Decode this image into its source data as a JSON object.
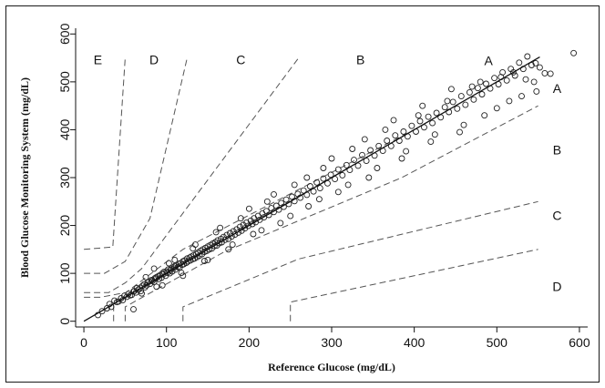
{
  "chart_data": {
    "type": "scatter",
    "title": "",
    "xlabel": "Reference Glucose (mg/dL)",
    "ylabel": "Blood Glucose Monitoring System (mg/dL)",
    "xlim": [
      -10,
      610
    ],
    "ylim": [
      -12,
      612
    ],
    "x_ticks": [
      0,
      100,
      200,
      300,
      400,
      500,
      600
    ],
    "y_ticks": [
      0,
      100,
      200,
      300,
      400,
      500,
      600
    ],
    "grid": false,
    "legend": "none",
    "marker": "open-circle",
    "colors": {
      "points": "#222222",
      "line": "#111111",
      "zone_lines": "#555555"
    },
    "regression_line": {
      "from": [
        0,
        0
      ],
      "to": [
        552,
        552
      ]
    },
    "zone_boundaries": [
      [
        [
          36,
          0
        ],
        [
          36,
          40
        ]
      ],
      [
        [
          0,
          50
        ],
        [
          20,
          50
        ],
        [
          51,
          60
        ],
        [
          120,
          150
        ],
        [
          400,
          400
        ]
      ],
      [
        [
          0,
          60
        ],
        [
          30,
          60
        ],
        [
          50,
          80
        ],
        [
          70,
          110
        ],
        [
          260,
          550
        ]
      ],
      [
        [
          0,
          100
        ],
        [
          25,
          100
        ],
        [
          50,
          125
        ],
        [
          80,
          215
        ],
        [
          125,
          550
        ]
      ],
      [
        [
          0,
          150
        ],
        [
          35,
          155
        ],
        [
          50,
          550
        ]
      ],
      [
        [
          50,
          0
        ],
        [
          50,
          30
        ],
        [
          170,
          145
        ],
        [
          385,
          300
        ],
        [
          550,
          450
        ]
      ],
      [
        [
          120,
          0
        ],
        [
          120,
          30
        ],
        [
          260,
          130
        ],
        [
          550,
          250
        ]
      ],
      [
        [
          250,
          0
        ],
        [
          250,
          40
        ],
        [
          550,
          150
        ]
      ]
    ],
    "zone_labels": [
      {
        "text": "E",
        "x": 17,
        "y": 546
      },
      {
        "text": "D",
        "x": 85,
        "y": 546
      },
      {
        "text": "C",
        "x": 190,
        "y": 546
      },
      {
        "text": "B",
        "x": 335,
        "y": 546
      },
      {
        "text": "A",
        "x": 490,
        "y": 544
      },
      {
        "text": "A",
        "x": 573,
        "y": 486
      },
      {
        "text": "B",
        "x": 573,
        "y": 358
      },
      {
        "text": "C",
        "x": 573,
        "y": 221
      },
      {
        "text": "D",
        "x": 573,
        "y": 73
      }
    ],
    "points": [
      [
        17,
        13
      ],
      [
        22,
        21
      ],
      [
        28,
        27
      ],
      [
        31,
        36
      ],
      [
        33,
        30
      ],
      [
        37,
        43
      ],
      [
        40,
        40
      ],
      [
        42,
        41
      ],
      [
        45,
        48
      ],
      [
        47,
        44
      ],
      [
        49,
        53
      ],
      [
        52,
        51
      ],
      [
        54,
        57
      ],
      [
        56,
        54
      ],
      [
        58,
        55
      ],
      [
        60,
        62
      ],
      [
        61,
        63
      ],
      [
        63,
        60
      ],
      [
        64,
        69
      ],
      [
        66,
        66
      ],
      [
        68,
        70
      ],
      [
        69,
        63
      ],
      [
        71,
        74
      ],
      [
        73,
        77
      ],
      [
        74,
        71
      ],
      [
        76,
        75
      ],
      [
        77,
        81
      ],
      [
        79,
        83
      ],
      [
        80,
        78
      ],
      [
        82,
        86
      ],
      [
        83,
        84
      ],
      [
        85,
        82
      ],
      [
        86,
        90
      ],
      [
        87,
        89
      ],
      [
        88,
        92
      ],
      [
        90,
        94
      ],
      [
        91,
        88
      ],
      [
        92,
        96
      ],
      [
        94,
        91
      ],
      [
        95,
        100
      ],
      [
        96,
        98
      ],
      [
        97,
        103
      ],
      [
        99,
        95
      ],
      [
        100,
        104
      ],
      [
        101,
        101
      ],
      [
        102,
        108
      ],
      [
        104,
        100
      ],
      [
        105,
        107
      ],
      [
        106,
        110
      ],
      [
        107,
        104
      ],
      [
        109,
        112
      ],
      [
        110,
        115
      ],
      [
        111,
        108
      ],
      [
        112,
        117
      ],
      [
        114,
        113
      ],
      [
        115,
        120
      ],
      [
        116,
        112
      ],
      [
        117,
        121
      ],
      [
        119,
        118
      ],
      [
        120,
        125
      ],
      [
        121,
        119
      ],
      [
        122,
        127
      ],
      [
        124,
        122
      ],
      [
        125,
        131
      ],
      [
        126,
        125
      ],
      [
        128,
        133
      ],
      [
        129,
        127
      ],
      [
        130,
        135
      ],
      [
        132,
        130
      ],
      [
        133,
        138
      ],
      [
        134,
        131
      ],
      [
        136,
        140
      ],
      [
        137,
        134
      ],
      [
        138,
        143
      ],
      [
        140,
        137
      ],
      [
        141,
        147
      ],
      [
        143,
        140
      ],
      [
        144,
        150
      ],
      [
        146,
        145
      ],
      [
        147,
        153
      ],
      [
        149,
        147
      ],
      [
        150,
        156
      ],
      [
        152,
        150
      ],
      [
        153,
        159
      ],
      [
        155,
        152
      ],
      [
        156,
        162
      ],
      [
        158,
        157
      ],
      [
        159,
        165
      ],
      [
        161,
        158
      ],
      [
        162,
        169
      ],
      [
        164,
        163
      ],
      [
        166,
        172
      ],
      [
        167,
        165
      ],
      [
        169,
        176
      ],
      [
        171,
        170
      ],
      [
        173,
        180
      ],
      [
        175,
        172
      ],
      [
        177,
        184
      ],
      [
        179,
        177
      ],
      [
        181,
        188
      ],
      [
        183,
        181
      ],
      [
        185,
        192
      ],
      [
        187,
        185
      ],
      [
        189,
        197
      ],
      [
        191,
        189
      ],
      [
        193,
        201
      ],
      [
        195,
        194
      ],
      [
        197,
        206
      ],
      [
        199,
        199
      ],
      [
        202,
        210
      ],
      [
        204,
        203
      ],
      [
        206,
        215
      ],
      [
        208,
        207
      ],
      [
        211,
        220
      ],
      [
        213,
        212
      ],
      [
        216,
        225
      ],
      [
        218,
        217
      ],
      [
        221,
        230
      ],
      [
        224,
        222
      ],
      [
        227,
        236
      ],
      [
        230,
        228
      ],
      [
        233,
        241
      ],
      [
        236,
        233
      ],
      [
        239,
        247
      ],
      [
        242,
        239
      ],
      [
        245,
        254
      ],
      [
        248,
        245
      ],
      [
        252,
        260
      ],
      [
        255,
        251
      ],
      [
        259,
        266
      ],
      [
        262,
        258
      ],
      [
        266,
        273
      ],
      [
        270,
        264
      ],
      [
        274,
        282
      ],
      [
        278,
        271
      ],
      [
        282,
        290
      ],
      [
        286,
        278
      ],
      [
        290,
        298
      ],
      [
        295,
        288
      ],
      [
        299,
        306
      ],
      [
        304,
        297
      ],
      [
        308,
        317
      ],
      [
        313,
        305
      ],
      [
        318,
        326
      ],
      [
        322,
        316
      ],
      [
        327,
        337
      ],
      [
        332,
        325
      ],
      [
        337,
        347
      ],
      [
        342,
        335
      ],
      [
        347,
        357
      ],
      [
        352,
        346
      ],
      [
        357,
        366
      ],
      [
        362,
        356
      ],
      [
        367,
        377
      ],
      [
        372,
        366
      ],
      [
        377,
        388
      ],
      [
        382,
        377
      ],
      [
        387,
        396
      ],
      [
        392,
        386
      ],
      [
        397,
        408
      ],
      [
        402,
        396
      ],
      [
        407,
        418
      ],
      [
        412,
        405
      ],
      [
        417,
        427
      ],
      [
        422,
        414
      ],
      [
        427,
        435
      ],
      [
        432,
        426
      ],
      [
        437,
        447
      ],
      [
        442,
        437
      ],
      [
        447,
        458
      ],
      [
        452,
        444
      ],
      [
        457,
        470
      ],
      [
        462,
        452
      ],
      [
        467,
        478
      ],
      [
        472,
        463
      ],
      [
        477,
        487
      ],
      [
        482,
        474
      ],
      [
        487,
        496
      ],
      [
        492,
        486
      ],
      [
        497,
        508
      ],
      [
        502,
        495
      ],
      [
        507,
        520
      ],
      [
        512,
        503
      ],
      [
        517,
        527
      ],
      [
        522,
        513
      ],
      [
        527,
        540
      ],
      [
        532,
        527
      ],
      [
        537,
        553
      ],
      [
        542,
        535
      ],
      [
        547,
        539
      ],
      [
        552,
        530
      ],
      [
        558,
        518
      ],
      [
        565,
        517
      ],
      [
        593,
        560
      ],
      [
        60,
        25
      ],
      [
        70,
        58
      ],
      [
        85,
        110
      ],
      [
        95,
        75
      ],
      [
        110,
        128
      ],
      [
        120,
        95
      ],
      [
        135,
        160
      ],
      [
        150,
        128
      ],
      [
        165,
        195
      ],
      [
        180,
        160
      ],
      [
        200,
        235
      ],
      [
        215,
        190
      ],
      [
        230,
        265
      ],
      [
        250,
        220
      ],
      [
        270,
        300
      ],
      [
        285,
        255
      ],
      [
        300,
        340
      ],
      [
        320,
        285
      ],
      [
        340,
        380
      ],
      [
        355,
        320
      ],
      [
        375,
        420
      ],
      [
        390,
        355
      ],
      [
        410,
        450
      ],
      [
        425,
        390
      ],
      [
        445,
        485
      ],
      [
        460,
        410
      ],
      [
        480,
        500
      ],
      [
        500,
        445
      ],
      [
        520,
        520
      ],
      [
        530,
        470
      ],
      [
        545,
        500
      ],
      [
        75,
        92
      ],
      [
        88,
        72
      ],
      [
        103,
        121
      ],
      [
        118,
        101
      ],
      [
        132,
        152
      ],
      [
        146,
        126
      ],
      [
        160,
        186
      ],
      [
        175,
        150
      ],
      [
        190,
        215
      ],
      [
        205,
        182
      ],
      [
        222,
        250
      ],
      [
        238,
        205
      ],
      [
        255,
        285
      ],
      [
        272,
        240
      ],
      [
        290,
        320
      ],
      [
        308,
        270
      ],
      [
        325,
        360
      ],
      [
        345,
        300
      ],
      [
        365,
        400
      ],
      [
        385,
        340
      ],
      [
        405,
        430
      ],
      [
        420,
        375
      ],
      [
        440,
        460
      ],
      [
        455,
        395
      ],
      [
        470,
        490
      ],
      [
        485,
        430
      ],
      [
        505,
        510
      ],
      [
        515,
        460
      ],
      [
        535,
        505
      ],
      [
        548,
        480
      ]
    ]
  }
}
